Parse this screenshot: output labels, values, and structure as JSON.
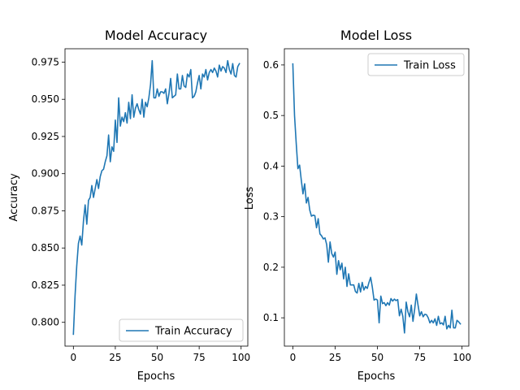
{
  "chart_data": [
    {
      "type": "line",
      "title": "Model Accuracy",
      "xlabel": "Epochs",
      "ylabel": "Accuracy",
      "xlim": [
        -5,
        104
      ],
      "ylim": [
        0.784,
        0.984
      ],
      "xticks": [
        0,
        25,
        50,
        75,
        100
      ],
      "xtick_labels": [
        "0",
        "25",
        "50",
        "75",
        "100"
      ],
      "yticks": [
        0.8,
        0.825,
        0.85,
        0.875,
        0.9,
        0.925,
        0.95,
        0.975
      ],
      "ytick_labels": [
        "0.800",
        "0.825",
        "0.850",
        "0.875",
        "0.900",
        "0.925",
        "0.950",
        "0.975"
      ],
      "grid": false,
      "legend": "lower-right",
      "series": [
        {
          "name": "Train Accuracy",
          "color": "#1f77b4",
          "x": [
            0,
            1,
            2,
            3,
            4,
            5,
            6,
            7,
            8,
            9,
            10,
            11,
            12,
            13,
            14,
            15,
            16,
            17,
            18,
            19,
            20,
            21,
            22,
            23,
            24,
            25,
            26,
            27,
            28,
            29,
            30,
            31,
            32,
            33,
            34,
            35,
            36,
            37,
            38,
            39,
            40,
            41,
            42,
            43,
            44,
            45,
            46,
            47,
            48,
            49,
            50,
            51,
            52,
            53,
            54,
            55,
            56,
            57,
            58,
            59,
            60,
            61,
            62,
            63,
            64,
            65,
            66,
            67,
            68,
            69,
            70,
            71,
            72,
            73,
            74,
            75,
            76,
            77,
            78,
            79,
            80,
            81,
            82,
            83,
            84,
            85,
            86,
            87,
            88,
            89,
            90,
            91,
            92,
            93,
            94,
            95,
            96,
            97,
            98,
            99
          ],
          "values": [
            0.792,
            0.818,
            0.838,
            0.853,
            0.858,
            0.852,
            0.868,
            0.879,
            0.866,
            0.882,
            0.884,
            0.892,
            0.884,
            0.89,
            0.896,
            0.89,
            0.898,
            0.902,
            0.903,
            0.908,
            0.912,
            0.926,
            0.908,
            0.918,
            0.915,
            0.936,
            0.921,
            0.951,
            0.932,
            0.938,
            0.935,
            0.941,
            0.934,
            0.948,
            0.937,
            0.953,
            0.938,
            0.944,
            0.947,
            0.943,
            0.94,
            0.95,
            0.938,
            0.948,
            0.945,
            0.951,
            0.96,
            0.976,
            0.951,
            0.951,
            0.957,
            0.952,
            0.955,
            0.955,
            0.954,
            0.957,
            0.947,
            0.954,
            0.964,
            0.951,
            0.952,
            0.953,
            0.967,
            0.957,
            0.957,
            0.966,
            0.959,
            0.958,
            0.967,
            0.965,
            0.97,
            0.951,
            0.952,
            0.955,
            0.961,
            0.966,
            0.957,
            0.967,
            0.965,
            0.97,
            0.963,
            0.968,
            0.97,
            0.968,
            0.971,
            0.969,
            0.965,
            0.973,
            0.969,
            0.972,
            0.971,
            0.968,
            0.976,
            0.97,
            0.967,
            0.974,
            0.966,
            0.965,
            0.972,
            0.974
          ]
        }
      ]
    },
    {
      "type": "line",
      "title": "Model Loss",
      "xlabel": "Epochs",
      "ylabel": "Loss",
      "xlim": [
        -5,
        104
      ],
      "ylim": [
        0.044,
        0.632
      ],
      "xticks": [
        0,
        25,
        50,
        75,
        100
      ],
      "xtick_labels": [
        "0",
        "25",
        "50",
        "75",
        "100"
      ],
      "yticks": [
        0.1,
        0.2,
        0.3,
        0.4,
        0.5,
        0.6
      ],
      "ytick_labels": [
        "0.1",
        "0.2",
        "0.3",
        "0.4",
        "0.5",
        "0.6"
      ],
      "grid": false,
      "legend": "upper-right",
      "series": [
        {
          "name": "Train Loss",
          "color": "#1f77b4",
          "x": [
            0,
            1,
            2,
            3,
            4,
            5,
            6,
            7,
            8,
            9,
            10,
            11,
            12,
            13,
            14,
            15,
            16,
            17,
            18,
            19,
            20,
            21,
            22,
            23,
            24,
            25,
            26,
            27,
            28,
            29,
            30,
            31,
            32,
            33,
            34,
            35,
            36,
            37,
            38,
            39,
            40,
            41,
            42,
            43,
            44,
            45,
            46,
            47,
            48,
            49,
            50,
            51,
            52,
            53,
            54,
            55,
            56,
            57,
            58,
            59,
            60,
            61,
            62,
            63,
            64,
            65,
            66,
            67,
            68,
            69,
            70,
            71,
            72,
            73,
            74,
            75,
            76,
            77,
            78,
            79,
            80,
            81,
            82,
            83,
            84,
            85,
            86,
            87,
            88,
            89,
            90,
            91,
            92,
            93,
            94,
            95,
            96,
            97,
            98,
            99
          ],
          "values": [
            0.602,
            0.5,
            0.445,
            0.395,
            0.402,
            0.372,
            0.345,
            0.365,
            0.327,
            0.338,
            0.313,
            0.301,
            0.303,
            0.302,
            0.278,
            0.296,
            0.266,
            0.262,
            0.256,
            0.258,
            0.245,
            0.21,
            0.25,
            0.227,
            0.22,
            0.23,
            0.186,
            0.213,
            0.195,
            0.208,
            0.177,
            0.2,
            0.162,
            0.187,
            0.165,
            0.165,
            0.165,
            0.152,
            0.149,
            0.168,
            0.151,
            0.17,
            0.155,
            0.162,
            0.158,
            0.17,
            0.18,
            0.16,
            0.135,
            0.137,
            0.135,
            0.09,
            0.143,
            0.128,
            0.13,
            0.124,
            0.13,
            0.125,
            0.138,
            0.133,
            0.137,
            0.134,
            0.136,
            0.104,
            0.117,
            0.103,
            0.07,
            0.131,
            0.112,
            0.102,
            0.125,
            0.093,
            0.117,
            0.147,
            0.125,
            0.104,
            0.112,
            0.102,
            0.107,
            0.106,
            0.1,
            0.09,
            0.095,
            0.09,
            0.098,
            0.085,
            0.103,
            0.088,
            0.09,
            0.086,
            0.103,
            0.078,
            0.085,
            0.08,
            0.115,
            0.08,
            0.08,
            0.095,
            0.092,
            0.088
          ]
        }
      ]
    }
  ]
}
